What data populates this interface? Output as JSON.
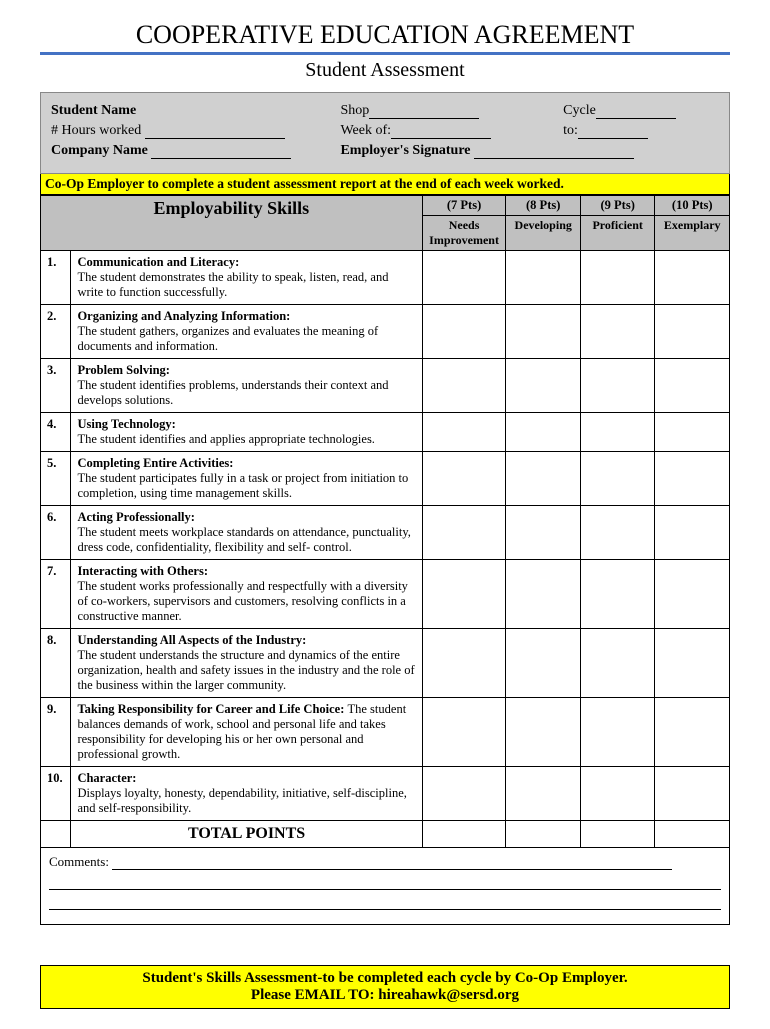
{
  "title": "COOPERATIVE EDUCATION AGREEMENT",
  "subtitle": "Student Assessment",
  "header": {
    "studentName": "Student Name",
    "shop": "Shop",
    "cycle": "Cycle",
    "hoursWorked": "# Hours worked",
    "weekOf": "Week of:",
    "to": "to:",
    "companyName": "Company Name",
    "employersSignature": "Employer's Signature"
  },
  "instruction": "Co-Op Employer to complete a student assessment report at the end of each week worked.",
  "table": {
    "skillsHeader": "Employability Skills",
    "columns": [
      {
        "pts": "(7 Pts)",
        "label": "Needs Improvement"
      },
      {
        "pts": "(8 Pts)",
        "label": "Developing"
      },
      {
        "pts": "(9 Pts)",
        "label": "Proficient"
      },
      {
        "pts": "(10 Pts)",
        "label": "Exemplary"
      }
    ],
    "rows": [
      {
        "num": "1.",
        "title": "Communication and Literacy:",
        "desc": "The student demonstrates the ability to speak, listen, read, and write to function successfully."
      },
      {
        "num": "2.",
        "title": "Organizing and Analyzing Information:",
        "desc": "The student gathers, organizes and evaluates the meaning of documents and information."
      },
      {
        "num": "3.",
        "title": "Problem Solving:",
        "desc": "The student identifies problems, understands their context and develops solutions."
      },
      {
        "num": "4.",
        "title": "Using Technology:",
        "desc": "The student identifies and applies appropriate technologies."
      },
      {
        "num": "5.",
        "title": "Completing Entire Activities:",
        "desc": "The student participates fully in a task or project from initiation to completion, using time management skills."
      },
      {
        "num": "6.",
        "title": "Acting Professionally:",
        "desc": "The student meets workplace standards on attendance, punctuality, dress code, confidentiality, flexibility and self- control."
      },
      {
        "num": "7.",
        "title": "Interacting with Others:",
        "desc": "The student works professionally and respectfully with a diversity of co-workers, supervisors and customers, resolving conflicts in a constructive manner."
      },
      {
        "num": "8.",
        "title": "Understanding All Aspects of the Industry:",
        "desc": "The student understands the structure and dynamics of the entire organization, health and safety issues in the industry and the role of the business within the larger community."
      },
      {
        "num": "9.",
        "title": "Taking Responsibility for Career and Life Choice: ",
        "desc": "The student balances demands of work, school and personal life and takes responsibility for developing his or her own personal and professional growth."
      },
      {
        "num": "10.",
        "title": "Character:",
        "desc": "Displays loyalty, honesty, dependability, initiative, self-discipline, and self-responsibility."
      }
    ],
    "totalLabel": "TOTAL POINTS"
  },
  "commentsLabel": "Comments:",
  "footer": {
    "line1": "Student's Skills Assessment-to be completed each cycle by Co-Op Employer.",
    "line2": "Please EMAIL TO: hireahawk@sersd.org"
  },
  "colors": {
    "accent": "#4472c4",
    "highlight": "#ffff00",
    "headerGray": "#d0d0d0",
    "tableGray": "#c0c0c0"
  }
}
